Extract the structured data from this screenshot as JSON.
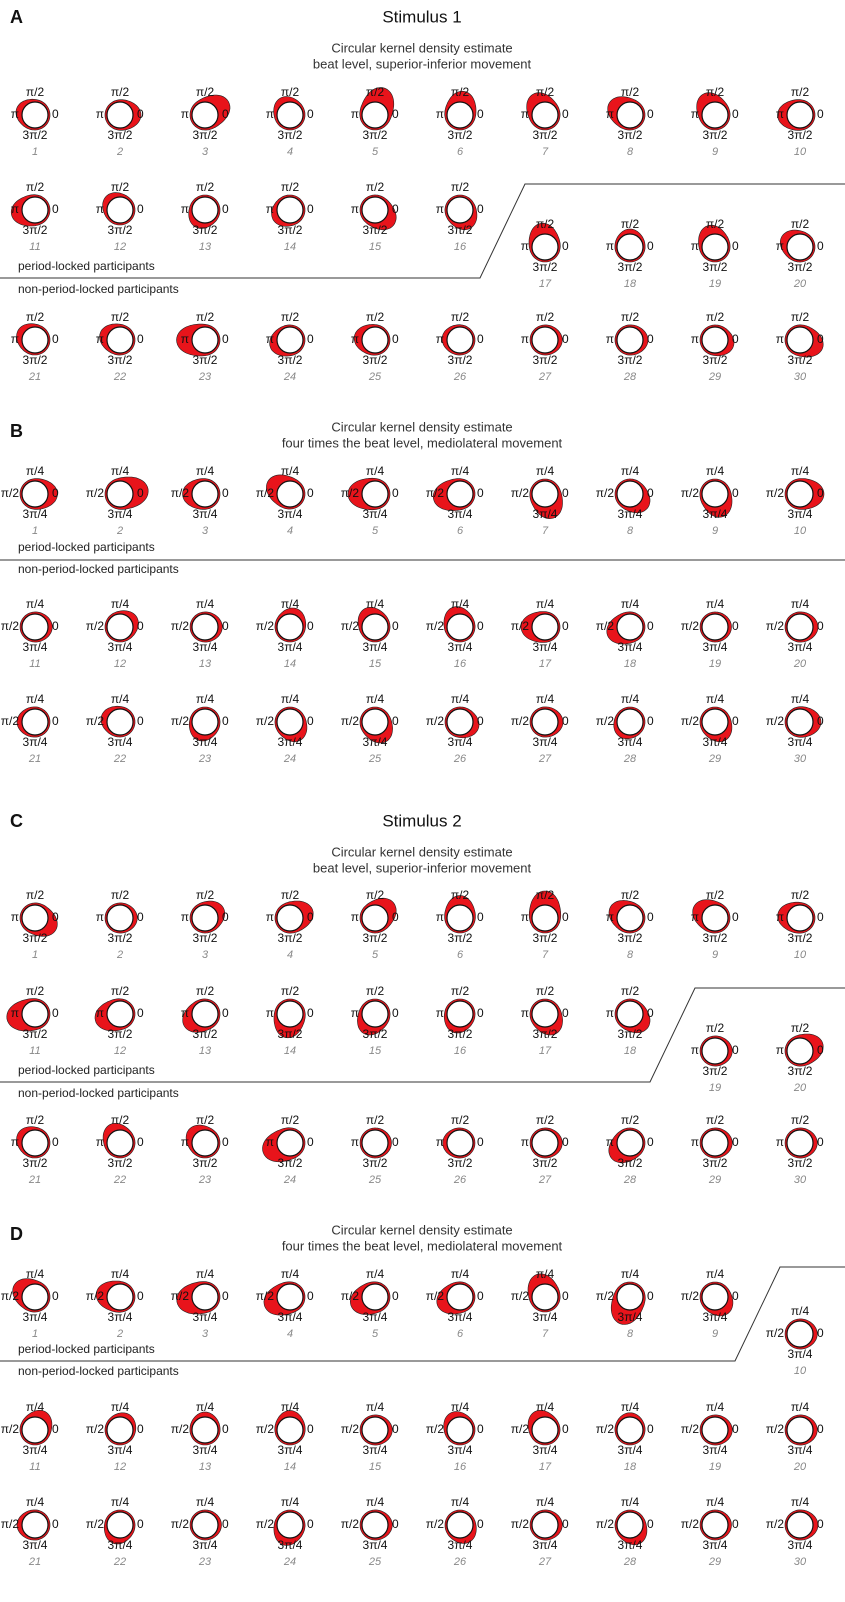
{
  "chart_data": [
    {
      "type": "circular-density",
      "label": "A",
      "title": "Stimulus 1",
      "subtitle": [
        "Circular kernel density estimate",
        "beat level, superior-inferior movement"
      ],
      "axis_labels": {
        "top": "π/2",
        "left": "π",
        "right": "0",
        "bottom": "3π/2"
      },
      "groups": [
        "period-locked participants",
        "non-period-locked participants"
      ],
      "period_locked_count": 16,
      "categories": [
        "1",
        "2",
        "3",
        "4",
        "5",
        "6",
        "7",
        "8",
        "9",
        "10",
        "11",
        "12",
        "13",
        "14",
        "15",
        "16",
        "17",
        "18",
        "19",
        "20",
        "21",
        "22",
        "23",
        "24",
        "25",
        "26",
        "27",
        "28",
        "29",
        "30"
      ],
      "peak_angle": [
        160,
        0,
        30,
        120,
        70,
        80,
        120,
        150,
        120,
        180,
        190,
        135,
        240,
        210,
        320,
        300,
        100,
        90,
        110,
        150,
        150,
        160,
        180,
        200,
        170,
        170,
        0,
        0,
        340,
        340
      ],
      "concentration": [
        0.3,
        0.4,
        0.8,
        0.3,
        0.9,
        0.6,
        0.6,
        0.6,
        0.6,
        0.5,
        0.6,
        0.3,
        0.3,
        0.3,
        0.6,
        0.4,
        0.6,
        0.2,
        0.5,
        0.4,
        0.3,
        0.4,
        0.9,
        0.4,
        0.4,
        0.2,
        0.15,
        0.2,
        0.3,
        0.6
      ]
    },
    {
      "type": "circular-density",
      "label": "B",
      "subtitle": [
        "Circular kernel density estimate",
        "four times the beat level, mediolateral movement"
      ],
      "axis_labels": {
        "top": "π/4",
        "left": "π/2",
        "right": "0",
        "bottom": "3π/4"
      },
      "groups": [
        "period-locked participants",
        "non-period-locked participants"
      ],
      "period_locked_count": 10,
      "categories": [
        "1",
        "2",
        "3",
        "4",
        "5",
        "6",
        "7",
        "8",
        "9",
        "10",
        "11",
        "12",
        "13",
        "14",
        "15",
        "16",
        "17",
        "18",
        "19",
        "20",
        "21",
        "22",
        "23",
        "24",
        "25",
        "26",
        "27",
        "28",
        "29",
        "30"
      ],
      "peak_angle": [
        0,
        10,
        180,
        150,
        180,
        190,
        290,
        320,
        290,
        0,
        0,
        30,
        0,
        70,
        120,
        110,
        180,
        200,
        0,
        0,
        180,
        160,
        250,
        300,
        300,
        340,
        0,
        230,
        300,
        0
      ],
      "concentration": [
        0.5,
        0.9,
        0.5,
        0.7,
        0.8,
        0.8,
        0.7,
        0.5,
        0.6,
        0.6,
        0.15,
        0.3,
        0.15,
        0.3,
        0.4,
        0.4,
        0.6,
        0.6,
        0.1,
        0.2,
        0.2,
        0.3,
        0.3,
        0.4,
        0.5,
        0.3,
        0.2,
        0.2,
        0.4,
        0.4
      ]
    },
    {
      "type": "circular-density",
      "label": "C",
      "title": "Stimulus 2",
      "subtitle": [
        "Circular kernel density estimate",
        "beat level, superior-inferior movement"
      ],
      "axis_labels": {
        "top": "π/2",
        "left": "π",
        "right": "0",
        "bottom": "3π/2"
      },
      "groups": [
        "period-locked participants",
        "non-period-locked participants"
      ],
      "period_locked_count": 18,
      "categories": [
        "1",
        "2",
        "3",
        "4",
        "5",
        "6",
        "7",
        "8",
        "9",
        "10",
        "11",
        "12",
        "13",
        "14",
        "15",
        "16",
        "17",
        "18",
        "19",
        "20",
        "21",
        "22",
        "23",
        "24",
        "25",
        "26",
        "27",
        "28",
        "29",
        "30"
      ],
      "peak_angle": [
        330,
        0,
        30,
        20,
        40,
        90,
        90,
        150,
        150,
        170,
        190,
        195,
        210,
        260,
        240,
        250,
        300,
        320,
        0,
        20,
        150,
        120,
        140,
        200,
        0,
        180,
        0,
        220,
        0,
        0
      ],
      "concentration": [
        0.6,
        0.15,
        0.4,
        0.6,
        0.6,
        0.5,
        0.8,
        0.5,
        0.6,
        0.5,
        0.9,
        0.7,
        0.6,
        0.6,
        0.5,
        0.3,
        0.5,
        0.5,
        0.15,
        0.6,
        0.3,
        0.4,
        0.4,
        0.9,
        0.1,
        0.15,
        0.15,
        0.6,
        0.15,
        0.15
      ]
    },
    {
      "type": "circular-density",
      "label": "D",
      "subtitle": [
        "Circular kernel density estimate",
        "four times the beat level, mediolateral movement"
      ],
      "axis_labels": {
        "top": "π/4",
        "left": "π/2",
        "right": "0",
        "bottom": "3π/4"
      },
      "groups": [
        "period-locked participants",
        "non-period-locked participants"
      ],
      "period_locked_count": 9,
      "categories": [
        "1",
        "2",
        "3",
        "4",
        "5",
        "6",
        "7",
        "8",
        "9",
        "10",
        "11",
        "12",
        "13",
        "14",
        "15",
        "16",
        "17",
        "18",
        "19",
        "20",
        "21",
        "22",
        "23",
        "24",
        "25",
        "26",
        "27",
        "28",
        "29",
        "30"
      ],
      "peak_angle": [
        150,
        170,
        190,
        200,
        200,
        200,
        110,
        250,
        310,
        0,
        60,
        60,
        90,
        90,
        0,
        120,
        120,
        90,
        0,
        0,
        180,
        250,
        0,
        250,
        0,
        300,
        0,
        300,
        0,
        0
      ],
      "concentration": [
        0.6,
        0.6,
        0.9,
        0.8,
        0.7,
        0.6,
        0.6,
        0.9,
        0.4,
        0.15,
        0.4,
        0.2,
        0.2,
        0.3,
        0.15,
        0.3,
        0.4,
        0.15,
        0.15,
        0.15,
        0.2,
        0.3,
        0.1,
        0.4,
        0.15,
        0.3,
        0.15,
        0.4,
        0.1,
        0.2
      ]
    }
  ]
}
